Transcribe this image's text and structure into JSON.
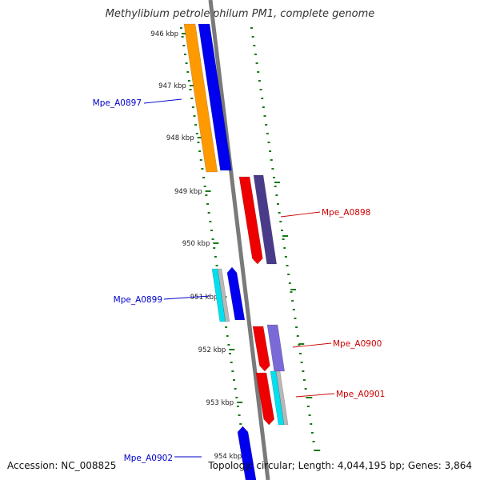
{
  "title": "Methylibium petroleiphilum PM1, complete genome",
  "footer": {
    "accession": "Accession: NC_008825",
    "summary": "Topology: circular; Length: 4,044,195 bp; Genes: 3,864"
  },
  "ticks": [
    {
      "label": "946 kbp"
    },
    {
      "label": "947 kbp"
    },
    {
      "label": "948 kbp"
    },
    {
      "label": "949 kbp"
    },
    {
      "label": "950 kbp"
    },
    {
      "label": "951 kbp"
    },
    {
      "label": "952 kbp"
    },
    {
      "label": "953 kbp"
    },
    {
      "label": "954 kbp"
    }
  ],
  "genes": [
    {
      "label": "Mpe_A0897",
      "strand": "-",
      "color": "#0000cc"
    },
    {
      "label": "Mpe_A0898",
      "strand": "+",
      "color": "#cc0000"
    },
    {
      "label": "Mpe_A0899",
      "strand": "-",
      "color": "#0000cc"
    },
    {
      "label": "Mpe_A0900",
      "strand": "+",
      "color": "#cc0000"
    },
    {
      "label": "Mpe_A0901",
      "strand": "+",
      "color": "#cc0000"
    },
    {
      "label": "Mpe_A0902",
      "strand": "-",
      "color": "#0000cc"
    }
  ],
  "colors": {
    "backbone": "#7a7a7a",
    "tick": "#1a7a1a",
    "cog_orange": "#ff9900",
    "cds_blue": "#0000ee",
    "cds_red": "#ee0000",
    "cog_purple": "#4a3b8a",
    "cog_lavender": "#7a6ad8",
    "cog_cyan": "#00e0f0",
    "grey": "#b8b8b8"
  }
}
